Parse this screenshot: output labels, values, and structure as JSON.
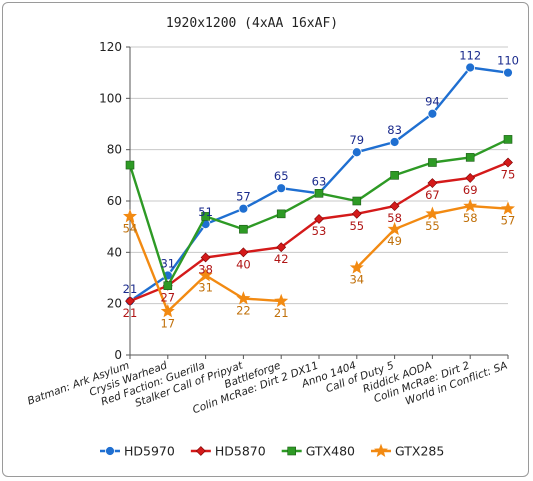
{
  "chart_data": {
    "type": "line",
    "title": "1920x1200 (4xAA 16xAF)",
    "xlabel": "",
    "ylabel": "",
    "ylim": [
      0,
      120
    ],
    "yticks": [
      0,
      20,
      40,
      60,
      80,
      100,
      120
    ],
    "grid": true,
    "legend_position": "bottom",
    "categories": [
      "Batman: Ark Asylum",
      "Crysis Warhead",
      "Red Faction: Guerilla",
      "Stalker Call of Pripyat",
      "Battleforge",
      "Colin McRae: Dirt 2 DX11",
      "Anno 1404",
      "Call of Duty 5",
      "Riddick AODA",
      "Colin McRae: Dirt 2",
      "World in Conflict: SA"
    ],
    "series": [
      {
        "name": "HD5970",
        "color": "#1f6fd1",
        "marker": "circle",
        "values": [
          21,
          31,
          51,
          57,
          65,
          63,
          79,
          83,
          94,
          112,
          110
        ],
        "labels": [
          "21",
          "31",
          "51",
          "57",
          "65",
          "63",
          "79",
          "83",
          "94",
          "112",
          "110"
        ]
      },
      {
        "name": "HD5870",
        "color": "#d41a1a",
        "marker": "diamond",
        "values": [
          21,
          27,
          38,
          40,
          42,
          53,
          55,
          58,
          67,
          69,
          75
        ],
        "labels": [
          "21",
          "27",
          "38",
          "40",
          "42",
          "53",
          "55",
          "58",
          "67",
          "69",
          "75"
        ]
      },
      {
        "name": "GTX480",
        "color": "#2e9a25",
        "marker": "square",
        "values": [
          74,
          27,
          54,
          49,
          55,
          63,
          60,
          70,
          75,
          77,
          84
        ],
        "labels": null
      },
      {
        "name": "GTX285",
        "color": "#f28a12",
        "marker": "star",
        "values": [
          54,
          17,
          31,
          22,
          21,
          null,
          34,
          49,
          55,
          58,
          57
        ],
        "labels": [
          "54",
          "17",
          "31",
          "22",
          "21",
          null,
          "34",
          "49",
          "55",
          "58",
          "57"
        ]
      }
    ]
  }
}
